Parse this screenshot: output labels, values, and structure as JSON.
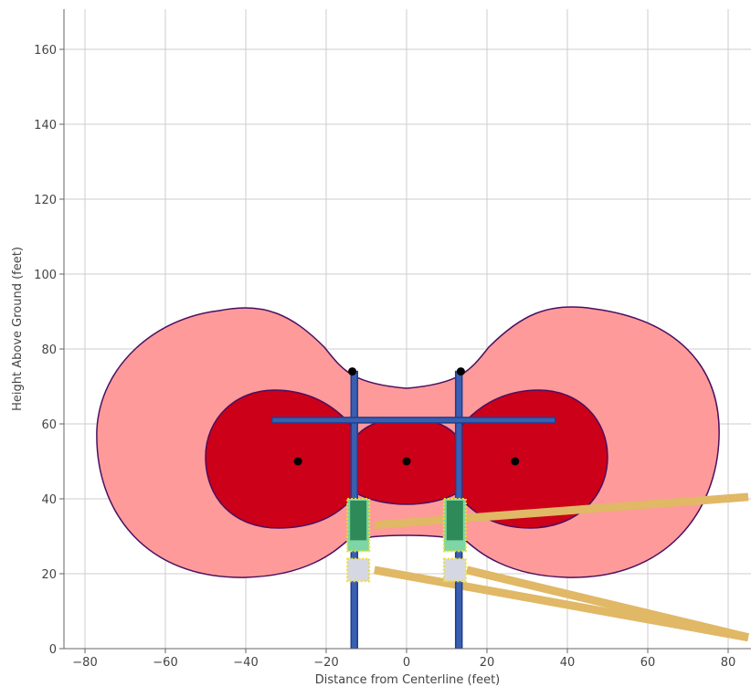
{
  "chart_data": {
    "type": "scatter",
    "title": "",
    "xlabel": "Distance from Centerline (feet)",
    "ylabel": "Height Above Ground (feet)",
    "xlim": [
      -85,
      85
    ],
    "ylim": [
      0,
      170
    ],
    "xticks": [
      -80,
      -60,
      -40,
      -20,
      0,
      20,
      40,
      60,
      80
    ],
    "yticks": [
      0,
      20,
      40,
      60,
      80,
      100,
      120,
      140,
      160
    ],
    "grid": true,
    "legend": "none",
    "conductors": [
      {
        "x": -27,
        "y": 50
      },
      {
        "x": 0,
        "y": 50
      },
      {
        "x": 27,
        "y": 50
      }
    ],
    "shield_wires": [
      {
        "x": -13.5,
        "y": 74
      },
      {
        "x": 13.5,
        "y": 74
      }
    ],
    "poles": [
      {
        "x": -13,
        "y_bottom": 0,
        "y_top": 74
      },
      {
        "x": 13,
        "y_bottom": 0,
        "y_top": 74
      }
    ],
    "crossarm": {
      "x_start": -33.5,
      "x_end": 37,
      "y": 61
    },
    "zones": {
      "outer_extent": {
        "x": [
          -77,
          77
        ],
        "y": [
          19,
          91
        ]
      },
      "inner_extent": {
        "x": [
          -50,
          50
        ],
        "y": [
          31,
          69
        ]
      }
    },
    "equipment": [
      {
        "x": -12,
        "y_bottom": 26,
        "y_top": 40,
        "kind": "green-box"
      },
      {
        "x": 12,
        "y_bottom": 26,
        "y_top": 40,
        "kind": "green-box"
      },
      {
        "x": -12,
        "y_bottom": 18,
        "y_top": 24,
        "kind": "gray-box"
      },
      {
        "x": 12,
        "y_bottom": 18,
        "y_top": 24,
        "kind": "gray-box"
      }
    ],
    "cables": [
      {
        "from": [
          -8,
          33
        ],
        "to": [
          85,
          40.5
        ]
      },
      {
        "from": [
          -8,
          21
        ],
        "to": [
          85,
          3
        ]
      },
      {
        "from": [
          15,
          21
        ],
        "to": [
          85,
          3
        ]
      }
    ],
    "colors": {
      "outer_zone": "#ff9a9a",
      "inner_zone": "#cc0018",
      "zone_outline": "#4a1060",
      "pole": "#3a5fb0",
      "pole_outline": "#1f3f8f",
      "cable": "#e0b866",
      "equipment_green": "#2f8a5a",
      "equipment_light": "#7ed6a6",
      "equipment_gray": "#d5d8e2",
      "equipment_outline": "#f0e020"
    }
  }
}
